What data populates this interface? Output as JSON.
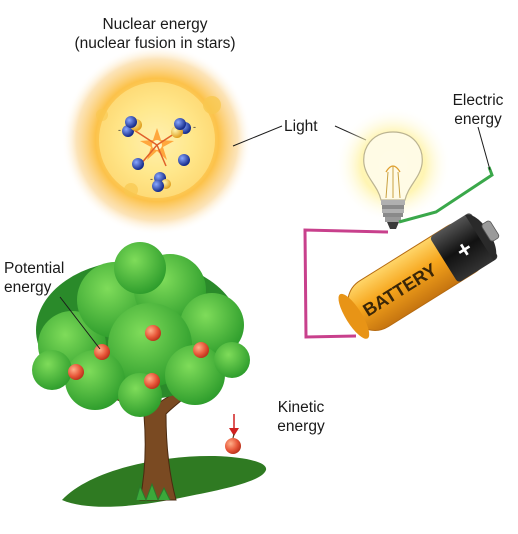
{
  "labels": {
    "nuclear_line1": "Nuclear energy",
    "nuclear_line2": "(nuclear fusion in stars)",
    "light": "Light",
    "electric_line1": "Electric",
    "electric_line2": "energy",
    "potential_line1": "Potential",
    "potential_line2": "energy",
    "kinetic_line1": "Kinetic",
    "kinetic_line2": "energy",
    "battery": "BATTERY",
    "battery_terminal": "+"
  },
  "colors": {
    "sun_core": "#fff3a8",
    "sun_glow": "#fbb13c",
    "proton": "#1e3aa8",
    "wire_positive": "#3aa84a",
    "wire_negative": "#c8408c",
    "battery_body": "#f5a31a",
    "battery_cap": "#1a1a1a",
    "leaf": "#3aa83a",
    "trunk": "#7a4a22",
    "apple": "#e8583a",
    "shadow": "#2f7a22"
  }
}
